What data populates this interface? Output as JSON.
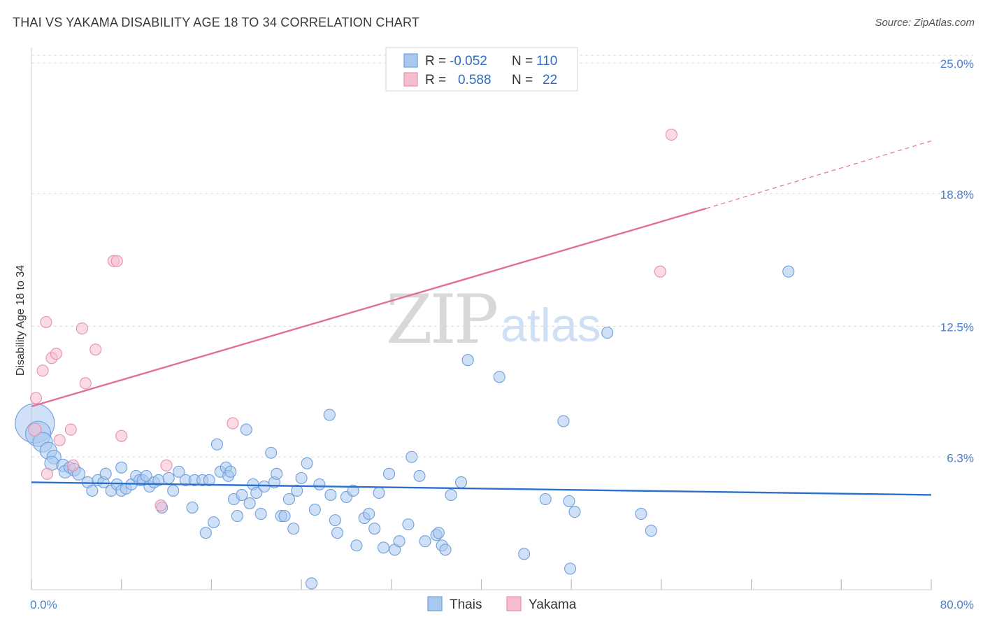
{
  "title": "THAI VS YAKAMA DISABILITY AGE 18 TO 34 CORRELATION CHART",
  "source": "Source: ZipAtlas.com",
  "watermark": {
    "zip": "ZIP",
    "atlas": "atlas"
  },
  "legend": {
    "rows": [
      {
        "r_label": "R =",
        "r_value": "-0.052",
        "n_label": "N =",
        "n_value": "110"
      },
      {
        "r_label": "R =",
        "r_value": "0.588",
        "n_label": "N =",
        "n_value": "22"
      }
    ]
  },
  "bottom_legend": [
    "Thais",
    "Yakama"
  ],
  "colors": {
    "thai_fill": "#a9c8f0",
    "thai_stroke": "#6f9fdc",
    "thai_line": "#2a70cc",
    "yakama_fill": "#f6bdd0",
    "yakama_stroke": "#e88fae",
    "yakama_line": "#e0709a",
    "grid": "#dddddd",
    "tick": "#4a7fd0"
  },
  "chart_data": {
    "type": "scatter",
    "title": "THAI VS YAKAMA DISABILITY AGE 18 TO 34 CORRELATION CHART",
    "xlabel": "",
    "ylabel": "Disability Age 18 to 34",
    "xlim": [
      0,
      80
    ],
    "ylim": [
      0,
      25.6
    ],
    "x_tick_labels": [
      {
        "value": 0,
        "label": "0.0%"
      },
      {
        "value": 80,
        "label": "80.0%"
      }
    ],
    "y_tick_labels": [
      {
        "value": 6.3,
        "label": "6.3%"
      },
      {
        "value": 12.5,
        "label": "12.5%"
      },
      {
        "value": 18.8,
        "label": "18.8%"
      },
      {
        "value": 25.0,
        "label": "25.0%"
      }
    ],
    "grid": true,
    "legend_position": "top-center",
    "series": [
      {
        "name": "Thais",
        "r": -0.052,
        "n": 110,
        "trend": [
          [
            0,
            5.1
          ],
          [
            80,
            4.5
          ]
        ],
        "points": [
          [
            0.3,
            7.9,
            28
          ],
          [
            0.6,
            7.4,
            18
          ],
          [
            1.0,
            7.0,
            14
          ],
          [
            1.5,
            6.6,
            12
          ],
          [
            2.0,
            6.3,
            10
          ],
          [
            1.8,
            6.0,
            10
          ],
          [
            2.8,
            5.9,
            9
          ],
          [
            3.0,
            5.6,
            9
          ],
          [
            3.4,
            5.8,
            8
          ],
          [
            3.8,
            5.7,
            9
          ],
          [
            4.2,
            5.5,
            9
          ],
          [
            5.0,
            5.1,
            8
          ],
          [
            5.4,
            4.7,
            8
          ],
          [
            5.9,
            5.2,
            8
          ],
          [
            6.4,
            5.1,
            8
          ],
          [
            6.6,
            5.5,
            8
          ],
          [
            7.1,
            4.7,
            8
          ],
          [
            7.6,
            5.0,
            8
          ],
          [
            8.0,
            4.7,
            8
          ],
          [
            8.0,
            5.8,
            8
          ],
          [
            8.4,
            4.8,
            8
          ],
          [
            8.9,
            5.0,
            8
          ],
          [
            9.3,
            5.4,
            8
          ],
          [
            9.6,
            5.2,
            8
          ],
          [
            9.9,
            5.2,
            8
          ],
          [
            10.2,
            5.4,
            8
          ],
          [
            10.5,
            4.9,
            8
          ],
          [
            10.9,
            5.1,
            8
          ],
          [
            11.3,
            5.2,
            8
          ],
          [
            11.6,
            3.9,
            8
          ],
          [
            12.2,
            5.3,
            8
          ],
          [
            12.6,
            4.7,
            8
          ],
          [
            13.1,
            5.6,
            8
          ],
          [
            13.7,
            5.2,
            8
          ],
          [
            14.3,
            3.9,
            8
          ],
          [
            14.5,
            5.2,
            8
          ],
          [
            15.2,
            5.2,
            8
          ],
          [
            15.5,
            2.7,
            8
          ],
          [
            15.8,
            5.2,
            8
          ],
          [
            16.2,
            3.2,
            8
          ],
          [
            16.5,
            6.9,
            8
          ],
          [
            16.8,
            5.6,
            8
          ],
          [
            17.3,
            5.8,
            8
          ],
          [
            17.5,
            5.4,
            8
          ],
          [
            17.7,
            5.6,
            8
          ],
          [
            18.0,
            4.3,
            8
          ],
          [
            18.3,
            3.5,
            8
          ],
          [
            18.7,
            4.5,
            8
          ],
          [
            19.1,
            7.6,
            8
          ],
          [
            19.4,
            4.1,
            8
          ],
          [
            19.7,
            5.0,
            8
          ],
          [
            20.0,
            4.6,
            8
          ],
          [
            20.4,
            3.6,
            8
          ],
          [
            20.7,
            4.9,
            8
          ],
          [
            21.3,
            6.5,
            8
          ],
          [
            21.6,
            5.1,
            8
          ],
          [
            21.8,
            5.5,
            8
          ],
          [
            22.2,
            3.5,
            8
          ],
          [
            22.5,
            3.5,
            8
          ],
          [
            22.9,
            4.3,
            8
          ],
          [
            23.3,
            2.9,
            8
          ],
          [
            23.6,
            4.7,
            8
          ],
          [
            24.0,
            5.3,
            8
          ],
          [
            24.5,
            6.0,
            8
          ],
          [
            24.9,
            0.3,
            8
          ],
          [
            25.2,
            3.8,
            8
          ],
          [
            25.6,
            5.0,
            8
          ],
          [
            26.5,
            8.3,
            8
          ],
          [
            26.6,
            4.5,
            8
          ],
          [
            27.0,
            3.3,
            8
          ],
          [
            27.2,
            2.7,
            8
          ],
          [
            28.0,
            4.4,
            8
          ],
          [
            28.6,
            4.7,
            8
          ],
          [
            28.9,
            2.1,
            8
          ],
          [
            29.6,
            3.4,
            8
          ],
          [
            30.0,
            3.6,
            8
          ],
          [
            30.5,
            2.9,
            8
          ],
          [
            30.9,
            4.6,
            8
          ],
          [
            31.3,
            2.0,
            8
          ],
          [
            31.8,
            5.5,
            8
          ],
          [
            32.3,
            1.9,
            8
          ],
          [
            32.7,
            2.3,
            8
          ],
          [
            33.5,
            3.1,
            8
          ],
          [
            33.8,
            6.3,
            8
          ],
          [
            34.5,
            5.4,
            8
          ],
          [
            35.0,
            2.3,
            8
          ],
          [
            36.0,
            2.6,
            8
          ],
          [
            36.2,
            2.7,
            8
          ],
          [
            36.5,
            2.1,
            8
          ],
          [
            36.8,
            1.9,
            8
          ],
          [
            37.3,
            4.5,
            8
          ],
          [
            38.2,
            5.1,
            8
          ],
          [
            38.8,
            10.9,
            8
          ],
          [
            41.6,
            10.1,
            8
          ],
          [
            43.8,
            1.7,
            8
          ],
          [
            45.7,
            4.3,
            8
          ],
          [
            47.3,
            8.0,
            8
          ],
          [
            47.8,
            4.2,
            8
          ],
          [
            47.9,
            1.0,
            8
          ],
          [
            48.3,
            3.7,
            8
          ],
          [
            51.2,
            12.2,
            8
          ],
          [
            54.2,
            3.6,
            8
          ],
          [
            55.1,
            2.8,
            8
          ],
          [
            67.3,
            15.1,
            8
          ]
        ]
      },
      {
        "name": "Yakama",
        "r": 0.588,
        "n": 22,
        "trend_solid": [
          [
            0,
            8.7
          ],
          [
            60,
            18.1
          ]
        ],
        "trend_dashed": [
          [
            60,
            18.1
          ],
          [
            80,
            21.3
          ]
        ],
        "points": [
          [
            0.3,
            7.6,
            9
          ],
          [
            0.4,
            9.1,
            8
          ],
          [
            1.0,
            10.4,
            8
          ],
          [
            1.3,
            12.7,
            8
          ],
          [
            1.4,
            5.5,
            8
          ],
          [
            1.8,
            11.0,
            8
          ],
          [
            2.2,
            11.2,
            8
          ],
          [
            2.5,
            7.1,
            8
          ],
          [
            3.5,
            7.6,
            8
          ],
          [
            3.7,
            5.9,
            8
          ],
          [
            4.5,
            12.4,
            8
          ],
          [
            4.8,
            9.8,
            8
          ],
          [
            5.7,
            11.4,
            8
          ],
          [
            7.3,
            15.6,
            8
          ],
          [
            7.6,
            15.6,
            8
          ],
          [
            8.0,
            7.3,
            8
          ],
          [
            11.5,
            4.0,
            8
          ],
          [
            12.0,
            5.9,
            8
          ],
          [
            17.9,
            7.9,
            8
          ],
          [
            55.9,
            15.1,
            8
          ],
          [
            56.9,
            21.6,
            8
          ]
        ]
      }
    ]
  }
}
